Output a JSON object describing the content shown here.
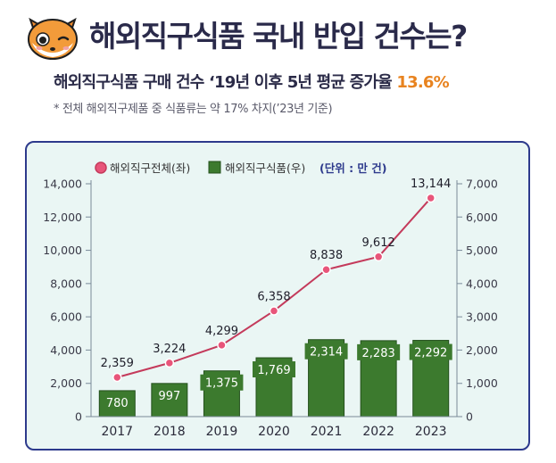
{
  "header": {
    "title": "해외직구식품 국내 반입 건수는?",
    "subtitle_prefix": "해외직구식품 구매 건수 ‘19년 이후 5년 평균 증가율",
    "subtitle_highlight": "13.6%",
    "footnote": "* 전체 해외직구제품 중 식품류는 약 17% 차지(’23년 기준)"
  },
  "colors": {
    "line": "#c43a5b",
    "marker": "#e8557a",
    "bar": "#3c7a2e",
    "bar_border": "#24501c",
    "highlight": "#e8831f",
    "frame": "#2d3a8c",
    "panel": "#eaf6f4"
  },
  "chart_data": {
    "type": "bar+line",
    "legend": {
      "line_label": "해외직구전체(좌)",
      "bar_label": "해외직구식품(우)",
      "unit_label": "(단위 : 만 건)"
    },
    "categories": [
      "2017",
      "2018",
      "2019",
      "2020",
      "2021",
      "2022",
      "2023"
    ],
    "series": [
      {
        "name": "해외직구전체(좌)",
        "type": "line",
        "axis": "left",
        "values": [
          2359,
          3224,
          4299,
          6358,
          8838,
          9612,
          13144
        ],
        "labels": [
          "2,359",
          "3,224",
          "4,299",
          "6,358",
          "8,838",
          "9,612",
          "13,144"
        ]
      },
      {
        "name": "해외직구식품(우)",
        "type": "bar",
        "axis": "right",
        "values": [
          780,
          997,
          1375,
          1769,
          2314,
          2283,
          2292
        ],
        "labels": [
          "780",
          "997",
          "1,375",
          "1,769",
          "2,314",
          "2,283",
          "2,292"
        ]
      }
    ],
    "y_left": {
      "min": 0,
      "max": 14000,
      "ticks": [
        "0",
        "2,000",
        "4,000",
        "6,000",
        "8,000",
        "10,000",
        "12,000",
        "14,000"
      ]
    },
    "y_right": {
      "min": 0,
      "max": 7000,
      "ticks": [
        "0",
        "1,000",
        "2,000",
        "3,000",
        "4,000",
        "5,000",
        "6,000",
        "7,000"
      ]
    }
  }
}
